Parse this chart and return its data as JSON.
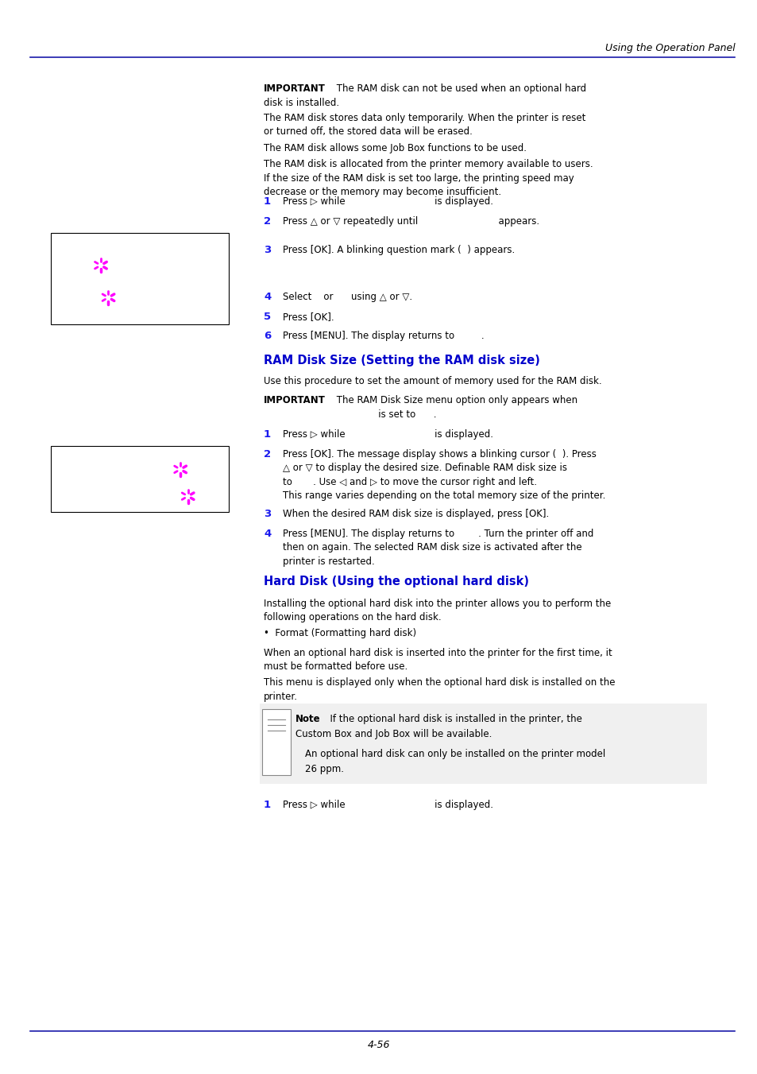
{
  "header_text": "Using the Operation Panel",
  "footer_text": "4-56",
  "header_line_color": "#1a1aaa",
  "footer_line_color": "#1a1aaa",
  "section_heading1": "RAM Disk Size (Setting the RAM disk size)",
  "section_heading2": "Hard Disk (Using the optional hard disk)",
  "heading_color": "#0000cc",
  "text_color": "#000000",
  "bg_color": "#ffffff",
  "lm": 0.348,
  "sm": 0.068,
  "fs_body": 8.5,
  "fs_step_num": 9.5,
  "fs_heading": 10.5,
  "fs_header": 9.0,
  "magenta_color": "#ff00ff",
  "step_color": "#1a1aee"
}
